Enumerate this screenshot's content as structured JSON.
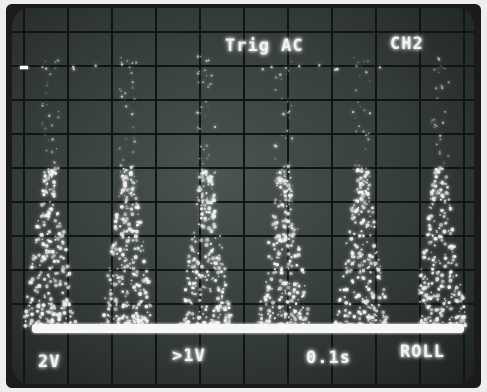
{
  "header": {
    "trigger": "Trig AC",
    "channel": "CH2"
  },
  "footer": {
    "volts_ch1": "2V",
    "volts_ch2": ">1V",
    "timebase": "0.1s",
    "mode": "ROLL"
  },
  "colors": {
    "trace": "#f4f4f4",
    "grid": "#101412",
    "screen": "#3c4641"
  },
  "trace": {
    "pulse_count": 6
  }
}
